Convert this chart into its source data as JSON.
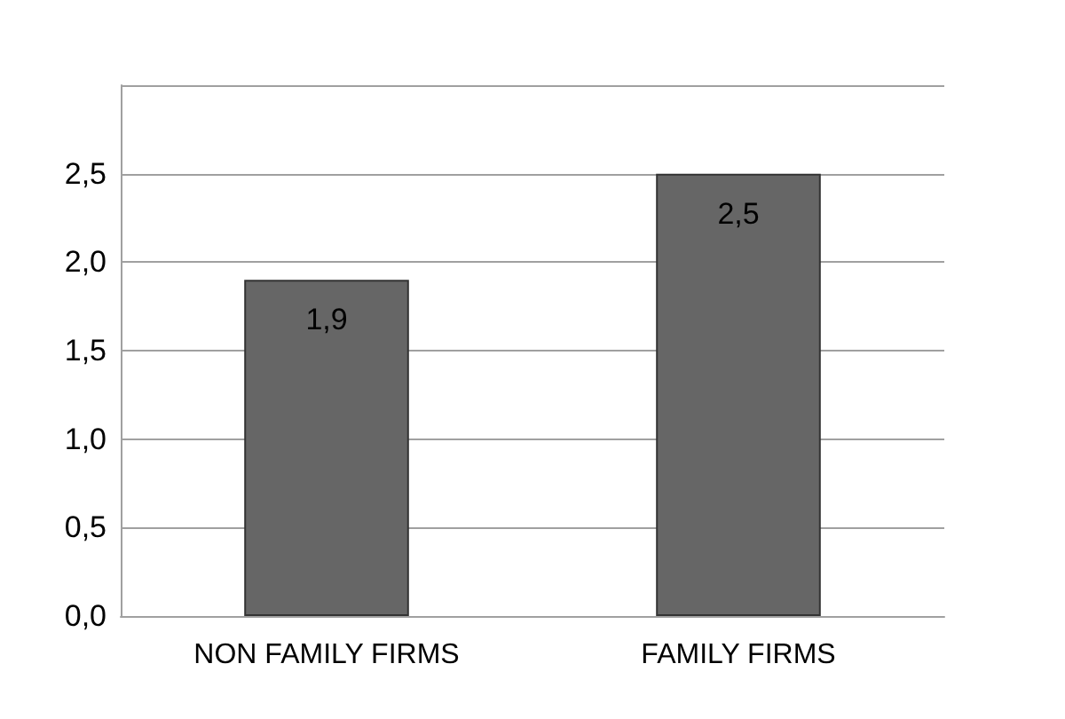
{
  "chart_data": {
    "type": "bar",
    "categories": [
      "NON FAMILY FIRMS",
      "FAMILY FIRMS"
    ],
    "values": [
      1.9,
      2.5
    ],
    "color": "#666666",
    "value_labels": [
      "1,9",
      "2,5"
    ],
    "ylim": [
      0,
      3
    ],
    "yticks": [
      {
        "value": 0,
        "label": "0,0"
      },
      {
        "value": 0.5,
        "label": "0,5"
      },
      {
        "value": 1,
        "label": "1,0"
      },
      {
        "value": 1.5,
        "label": "1,5"
      },
      {
        "value": 2,
        "label": "2,0"
      },
      {
        "value": 2.5,
        "label": "2,5"
      },
      {
        "value": 3,
        "label": null
      }
    ],
    "grid": true
  }
}
